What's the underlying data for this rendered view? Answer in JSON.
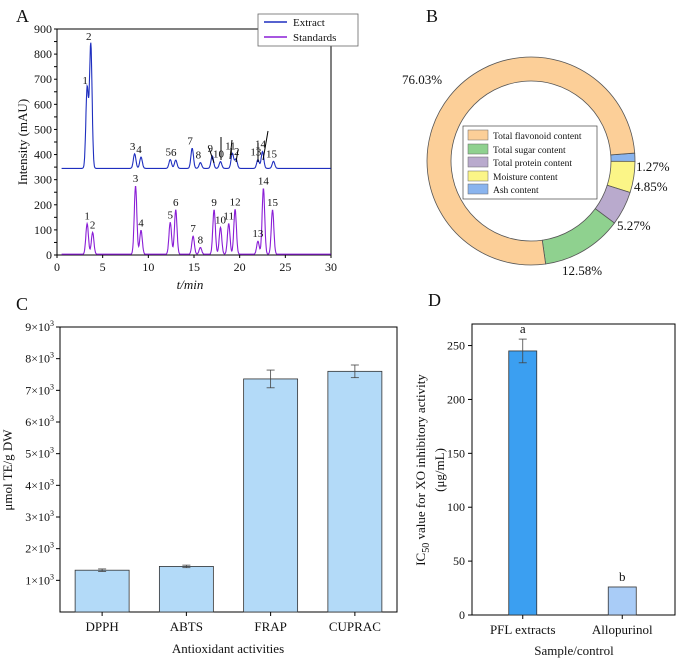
{
  "chart_data": [
    {
      "panel": "A",
      "type": "line",
      "title": "",
      "xlabel": "t/min",
      "ylabel": "Intensity (mAU)",
      "xlim": [
        0,
        30
      ],
      "ylim": [
        0,
        900
      ],
      "xticks": [
        0,
        5,
        10,
        15,
        20,
        25,
        30
      ],
      "yticks": [
        0,
        50,
        100,
        150,
        200,
        250,
        300,
        350,
        400,
        450,
        500,
        550,
        600,
        650,
        700,
        750,
        800,
        850,
        900
      ],
      "legend": [
        "Extract",
        "Standards"
      ],
      "legend_position": "top-right",
      "series": [
        {
          "name": "Extract",
          "color": "#1f2fbf",
          "baseline": 345,
          "peaks": [
            {
              "label": "1",
              "t": 3.3,
              "height": 665
            },
            {
              "label": "2",
              "t": 3.7,
              "height": 840
            },
            {
              "label": "3",
              "t": 8.5,
              "height": 403
            },
            {
              "label": "4",
              "t": 9.2,
              "height": 390
            },
            {
              "label": "5",
              "t": 12.4,
              "height": 380
            },
            {
              "label": "6",
              "t": 13.0,
              "height": 378
            },
            {
              "label": "7",
              "t": 14.8,
              "height": 425
            },
            {
              "label": "8",
              "t": 15.7,
              "height": 368
            },
            {
              "label": "9",
              "t": 17.0,
              "height": 395
            },
            {
              "label": "10",
              "t": 17.9,
              "height": 372
            },
            {
              "label": "11",
              "t": 19.2,
              "height": 405
            },
            {
              "label": "12",
              "t": 19.6,
              "height": 382
            },
            {
              "label": "13",
              "t": 22.0,
              "height": 380
            },
            {
              "label": "14",
              "t": 22.5,
              "height": 412
            },
            {
              "label": "15",
              "t": 23.7,
              "height": 373
            }
          ]
        },
        {
          "name": "Standards",
          "color": "#8a1ed6",
          "baseline": 3,
          "peaks": [
            {
              "label": "1",
              "t": 3.3,
              "height": 125
            },
            {
              "label": "2",
              "t": 3.9,
              "height": 90
            },
            {
              "label": "3",
              "t": 8.6,
              "height": 275
            },
            {
              "label": "4",
              "t": 9.2,
              "height": 98
            },
            {
              "label": "5",
              "t": 12.4,
              "height": 130
            },
            {
              "label": "6",
              "t": 13.0,
              "height": 180
            },
            {
              "label": "7",
              "t": 14.9,
              "height": 75
            },
            {
              "label": "8",
              "t": 15.7,
              "height": 30
            },
            {
              "label": "9",
              "t": 17.2,
              "height": 180
            },
            {
              "label": "10",
              "t": 17.9,
              "height": 110
            },
            {
              "label": "11",
              "t": 18.8,
              "height": 125
            },
            {
              "label": "12",
              "t": 19.5,
              "height": 182
            },
            {
              "label": "13",
              "t": 22.0,
              "height": 55
            },
            {
              "label": "14",
              "t": 22.6,
              "height": 265
            },
            {
              "label": "15",
              "t": 23.6,
              "height": 180
            }
          ]
        }
      ]
    },
    {
      "panel": "B",
      "type": "pie",
      "title": "",
      "legend_position": "center",
      "slices": [
        {
          "label": "Total flavonoid content",
          "value": 76.03,
          "value_label": "76.03%",
          "color": "#fccf98"
        },
        {
          "label": "Total sugar content",
          "value": 12.58,
          "value_label": "12.58%",
          "color": "#8fd18f"
        },
        {
          "label": "Total protein content",
          "value": 5.27,
          "value_label": "5.27%",
          "color": "#b9aacd"
        },
        {
          "label": "Moisture content",
          "value": 4.85,
          "value_label": "4.85%",
          "color": "#fbf587"
        },
        {
          "label": "Ash content",
          "value": 1.27,
          "value_label": "1.27%",
          "color": "#8ab4ee"
        }
      ]
    },
    {
      "panel": "C",
      "type": "bar",
      "title": "",
      "xlabel": "Antioxidant activities",
      "ylabel": "μmol TE/g DW",
      "categories": [
        "DPPH",
        "ABTS",
        "FRAP",
        "CUPRAC"
      ],
      "values": [
        1320,
        1440,
        7360,
        7600
      ],
      "errors": [
        40,
        40,
        280,
        200
      ],
      "color": "#b3daf8",
      "ylim": [
        0,
        9000
      ],
      "yticks": [
        1000,
        2000,
        3000,
        4000,
        5000,
        6000,
        7000,
        8000,
        9000
      ],
      "ytick_base": "×10",
      "ytick_exponent": "3",
      "ytick_mantissas": [
        "1",
        "2",
        "3",
        "4",
        "5",
        "6",
        "7",
        "8",
        "9"
      ]
    },
    {
      "panel": "D",
      "type": "bar",
      "title": "",
      "xlabel": "Sample/control",
      "ylabel_main": "IC",
      "ylabel_sub": "50",
      "ylabel_rest": " value for XO inhibitory activity",
      "ylabel_unit": "(μg/mL)",
      "categories": [
        "PFL extracts",
        "Allopurinol"
      ],
      "values": [
        245,
        26
      ],
      "errors": [
        11,
        0
      ],
      "significance": [
        "a",
        "b"
      ],
      "colors": [
        "#3b9ff1",
        "#a9ccf7"
      ],
      "ylim": [
        0,
        270
      ],
      "yticks": [
        0,
        50,
        100,
        150,
        200,
        250
      ]
    }
  ]
}
